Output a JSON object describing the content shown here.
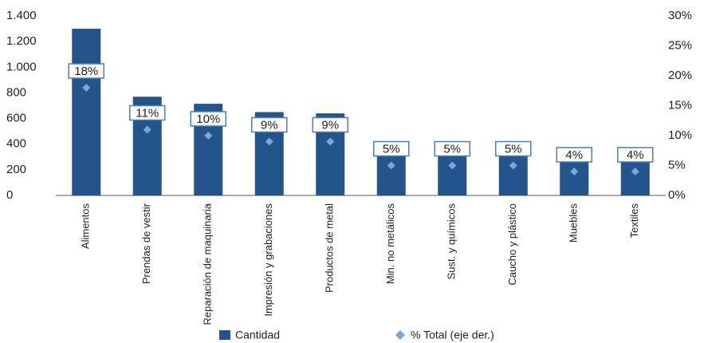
{
  "chart_data": {
    "type": "bar",
    "categories": [
      "Alimentos",
      "Prendas de vestir",
      "Reparación de maquinaria",
      "Impresión y grabaciones",
      "Productos de metal",
      "Min. no metálicos",
      "Sust. y químicos",
      "Caucho y plástico",
      "Muebles",
      "Textiles"
    ],
    "series": [
      {
        "name": "Cantidad",
        "type": "bar",
        "color": "#23548b",
        "values": [
          1300,
          770,
          715,
          650,
          640,
          385,
          385,
          360,
          350,
          320
        ]
      },
      {
        "name": "% Total (eje der.)",
        "type": "scatter",
        "axis": "y2",
        "color": "#7ba7d7",
        "values": [
          18,
          11,
          10,
          9,
          9,
          5,
          5,
          5,
          4,
          4
        ],
        "value_labels": [
          "18%",
          "11%",
          "10%",
          "9%",
          "9%",
          "5%",
          "5%",
          "5%",
          "4%",
          "4%"
        ]
      }
    ],
    "ylim": [
      0,
      1400
    ],
    "yticks": [
      0,
      200,
      400,
      600,
      800,
      {
        "value": 1000,
        "label": "1.000"
      },
      {
        "value": 1200,
        "label": "1.200"
      },
      {
        "value": 1400,
        "label": "1.400"
      }
    ],
    "y2lim": [
      0,
      30
    ],
    "y2ticks": [
      {
        "value": 0,
        "label": "0%"
      },
      {
        "value": 5,
        "label": "5%"
      },
      {
        "value": 10,
        "label": "10%"
      },
      {
        "value": 15,
        "label": "15%"
      },
      {
        "value": 20,
        "label": "20%"
      },
      {
        "value": 25,
        "label": "25%"
      },
      {
        "value": 30,
        "label": "30%"
      }
    ],
    "grid": false,
    "legend": "bottom"
  }
}
